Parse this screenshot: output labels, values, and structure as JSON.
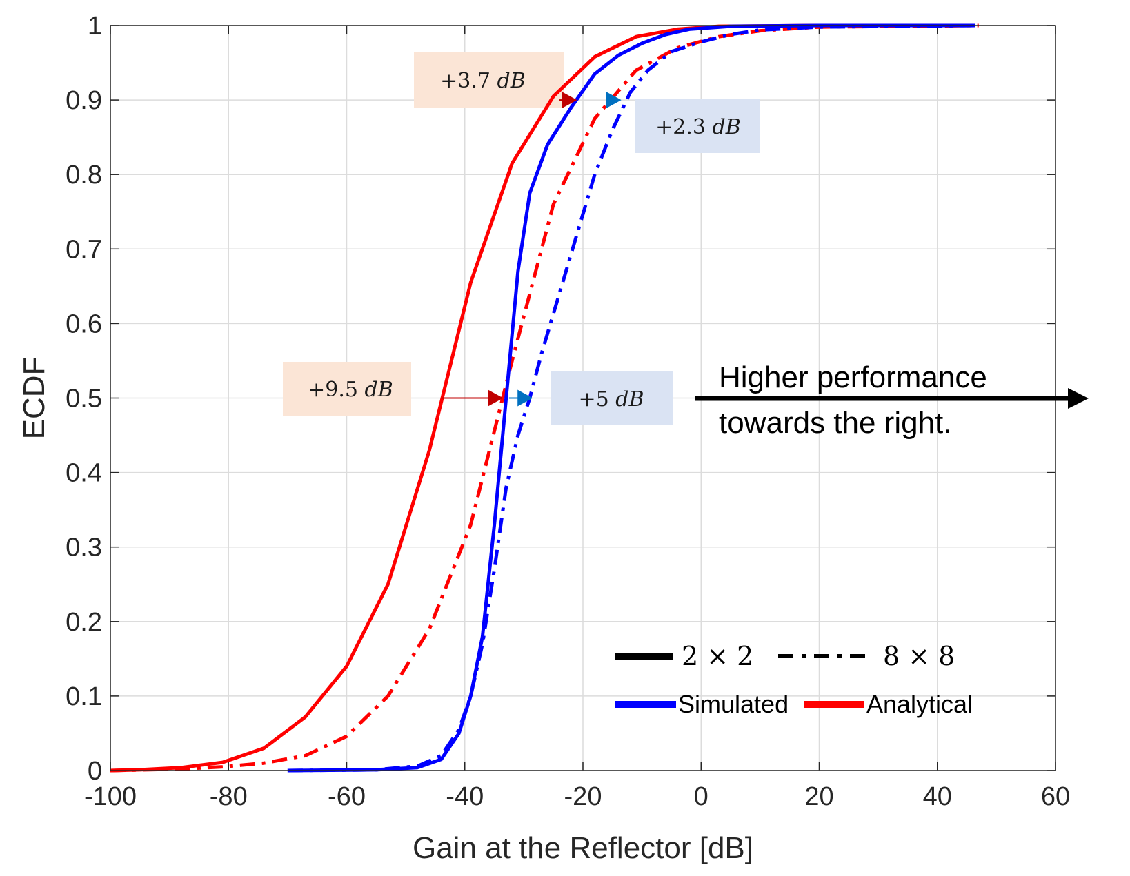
{
  "chart_data": {
    "type": "line",
    "title": "",
    "xlabel": "Gain at the Reflector [dB]",
    "ylabel": "ECDF",
    "xlim": [
      -100,
      60
    ],
    "ylim": [
      0,
      1
    ],
    "grid": true,
    "xticks": [
      "-100",
      "-80",
      "-60",
      "-40",
      "-20",
      "0",
      "20",
      "40",
      "60"
    ],
    "yticks": [
      "0",
      "0.1",
      "0.2",
      "0.3",
      "0.4",
      "0.5",
      "0.6",
      "0.7",
      "0.8",
      "0.9",
      "1"
    ],
    "colors": {
      "simulated": "#0000ff",
      "analytical": "#ff0000"
    },
    "series": [
      {
        "color": "#ff0000",
        "style": "solid",
        "points": [
          [
            -100,
            0
          ],
          [
            -95,
            0.001
          ],
          [
            -88,
            0.004
          ],
          [
            -81,
            0.011
          ],
          [
            -74,
            0.03
          ],
          [
            -67,
            0.072
          ],
          [
            -60,
            0.14
          ],
          [
            -53,
            0.25
          ],
          [
            -46,
            0.43
          ],
          [
            -39,
            0.655
          ],
          [
            -32,
            0.815
          ],
          [
            -25,
            0.905
          ],
          [
            -18,
            0.958
          ],
          [
            -11,
            0.985
          ],
          [
            -4,
            0.995
          ],
          [
            3,
            0.999
          ],
          [
            20,
            1
          ],
          [
            46,
            1
          ]
        ]
      },
      {
        "color": "#ff0000",
        "style": "dashdot",
        "points": [
          [
            -100,
            0
          ],
          [
            -88,
            0.002
          ],
          [
            -81,
            0.005
          ],
          [
            -74,
            0.01
          ],
          [
            -67,
            0.02
          ],
          [
            -60,
            0.046
          ],
          [
            -53,
            0.1
          ],
          [
            -46,
            0.19
          ],
          [
            -39,
            0.33
          ],
          [
            -32,
            0.55
          ],
          [
            -25,
            0.76
          ],
          [
            -18,
            0.875
          ],
          [
            -11,
            0.94
          ],
          [
            -4,
            0.97
          ],
          [
            3,
            0.985
          ],
          [
            10,
            0.993
          ],
          [
            20,
            0.998
          ],
          [
            47,
            1
          ]
        ]
      },
      {
        "color": "#0000ff",
        "style": "solid",
        "points": [
          [
            -70,
            0
          ],
          [
            -55,
            0.001
          ],
          [
            -48,
            0.004
          ],
          [
            -44,
            0.015
          ],
          [
            -41,
            0.05
          ],
          [
            -39,
            0.1
          ],
          [
            -37,
            0.18
          ],
          [
            -35,
            0.33
          ],
          [
            -33,
            0.5
          ],
          [
            -31,
            0.67
          ],
          [
            -29,
            0.775
          ],
          [
            -26,
            0.84
          ],
          [
            -22,
            0.89
          ],
          [
            -18,
            0.935
          ],
          [
            -14,
            0.96
          ],
          [
            -10,
            0.976
          ],
          [
            -6,
            0.988
          ],
          [
            -2,
            0.995
          ],
          [
            5,
            0.999
          ],
          [
            20,
            1
          ],
          [
            46,
            1
          ]
        ]
      },
      {
        "color": "#0000ff",
        "style": "dashdot",
        "points": [
          [
            -70,
            0
          ],
          [
            -55,
            0.001
          ],
          [
            -48,
            0.006
          ],
          [
            -44,
            0.02
          ],
          [
            -41,
            0.055
          ],
          [
            -39,
            0.1
          ],
          [
            -37,
            0.17
          ],
          [
            -35,
            0.27
          ],
          [
            -33,
            0.38
          ],
          [
            -31,
            0.45
          ],
          [
            -29,
            0.5
          ],
          [
            -27,
            0.56
          ],
          [
            -24,
            0.64
          ],
          [
            -21,
            0.72
          ],
          [
            -18,
            0.8
          ],
          [
            -15,
            0.86
          ],
          [
            -12,
            0.91
          ],
          [
            -9,
            0.94
          ],
          [
            -5,
            0.965
          ],
          [
            0,
            0.978
          ],
          [
            5,
            0.988
          ],
          [
            10,
            0.994
          ],
          [
            20,
            0.998
          ],
          [
            47,
            1
          ]
        ]
      }
    ],
    "annotations": [
      {
        "text": "+3.7 𝑑𝐵",
        "arrow_from": [
          -24,
          0.9
        ],
        "arrow_to": [
          -21,
          0.9
        ],
        "color": "#c00000",
        "box": "#fbe5d6"
      },
      {
        "text": "+2.3 𝑑𝐵",
        "arrow_from": [
          -16,
          0.9
        ],
        "arrow_to": [
          -13.5,
          0.9
        ],
        "color": "#0070c0",
        "box": "#dae3f3"
      },
      {
        "text": "+9.5 𝑑𝐵",
        "arrow_from": [
          -44,
          0.5
        ],
        "arrow_to": [
          -33.5,
          0.5
        ],
        "color": "#c00000",
        "box": "#fbe5d6"
      },
      {
        "text": "+5 𝑑𝐵",
        "arrow_from": [
          -32.5,
          0.5
        ],
        "arrow_to": [
          -28.5,
          0.5
        ],
        "color": "#0070c0",
        "box": "#dae3f3"
      }
    ],
    "note": [
      "Higher performance",
      "towards the right."
    ],
    "legend": {
      "position": "bottom-right",
      "size_entries": [
        {
          "label": "2 × 2",
          "style": "solid"
        },
        {
          "label": "8 × 8",
          "style": "dashdot"
        }
      ],
      "type_entries": [
        {
          "label": "Simulated",
          "color": "#0000ff"
        },
        {
          "label": "Analytical",
          "color": "#ff0000"
        }
      ]
    }
  }
}
